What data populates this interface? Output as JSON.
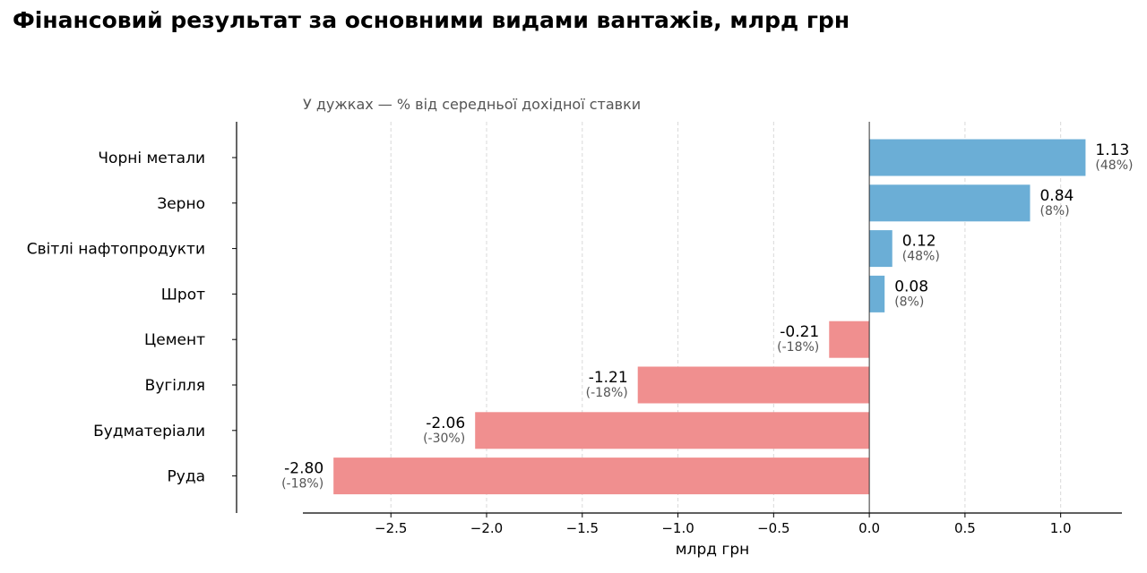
{
  "chart_data": {
    "type": "bar",
    "orientation": "horizontal",
    "title": "Фінансовий результат за основними видами вантажів, млрд грн",
    "subtitle": "У дужках — % від середньої дохідної ставки",
    "xlabel": "млрд грн",
    "ylabel": "",
    "xlim": [
      -2.96,
      1.32
    ],
    "xticks": [
      -2.5,
      -2.0,
      -1.5,
      -1.0,
      -0.5,
      0.0,
      0.5,
      1.0
    ],
    "xtick_labels": [
      "−2.5",
      "−2.0",
      "−1.5",
      "−1.0",
      "−0.5",
      "0.0",
      "0.5",
      "1.0"
    ],
    "grid": "x-dashed",
    "categories": [
      "Чорні метали",
      "Зерно",
      "Світлі нафтопродукти",
      "Шрот",
      "Цемент",
      "Вугілля",
      "Будматеріали",
      "Руда"
    ],
    "values": [
      1.13,
      0.84,
      0.12,
      0.08,
      -0.21,
      -1.21,
      -2.06,
      -2.8
    ],
    "value_labels": [
      "1.13",
      "0.84",
      "0.12",
      "0.08",
      "-0.21",
      "-1.21",
      "-2.06",
      "-2.80"
    ],
    "pct_labels": [
      "(48%)",
      "(8%)",
      "(48%)",
      "(8%)",
      "(-18%)",
      "(-18%)",
      "(-30%)",
      "(-18%)"
    ],
    "colors": {
      "positive": "#6baed6",
      "negative": "#f08f8f"
    }
  }
}
